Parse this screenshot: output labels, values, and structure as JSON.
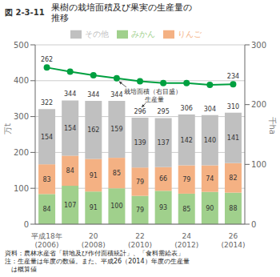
{
  "chart_data": {
    "type": "bar",
    "title": "果樹の栽培面積及び果実の生産量の\n推移",
    "subtitle": "図 2-3-11",
    "source": "資料：農林水産省「耕地及び作付面積統計」、「食料需給表」\n注：生産量は年度の数値。また、平成26（2014）年度の生産量\n　は概算値",
    "categories": [
      "平成18年\n(2006)",
      null,
      "20\n(2008)",
      null,
      "22\n(2010)",
      null,
      "24\n(2012)",
      null,
      "26\n(2014)"
    ],
    "stacked": true,
    "data_labels": true,
    "grid": true,
    "legend": "top",
    "series": [
      {
        "name": "みかん",
        "color": "#a0d08c",
        "values": [
          84,
          107,
          91,
          100,
          79,
          93,
          85,
          90,
          88
        ]
      },
      {
        "name": "りんご",
        "color": "#f4b183",
        "values": [
          83,
          84,
          91,
          85,
          79,
          66,
          79,
          74,
          82
        ]
      },
      {
        "name": "その他",
        "color": "#c0c0c0",
        "values": [
          154,
          154,
          162,
          159,
          139,
          137,
          142,
          140,
          141
        ]
      },
      {
        "type": "line",
        "axis": "y2",
        "color": "#00a040",
        "marker": "circle",
        "values": [
          262,
          255,
          249,
          244,
          239,
          236,
          236,
          233,
          234
        ],
        "value_labels": [
          "262",
          null,
          null,
          null,
          null,
          null,
          null,
          null,
          "234"
        ]
      }
    ],
    "totals": [
      322,
      344,
      344,
      344,
      296,
      295,
      306,
      304,
      310
    ],
    "ylabel": "万t",
    "y2label": "千ha",
    "ylim": [
      0,
      500
    ],
    "yticks": [
      0,
      100,
      200,
      300,
      400,
      500
    ],
    "y2lim": [
      0,
      300
    ],
    "y2ticks": [
      0,
      100,
      200,
      300
    ],
    "annotations": [
      {
        "text": "栽培面積（右目盛）",
        "x": 3,
        "axis": "y2"
      },
      {
        "text": "生産量",
        "x": 4
      }
    ]
  }
}
